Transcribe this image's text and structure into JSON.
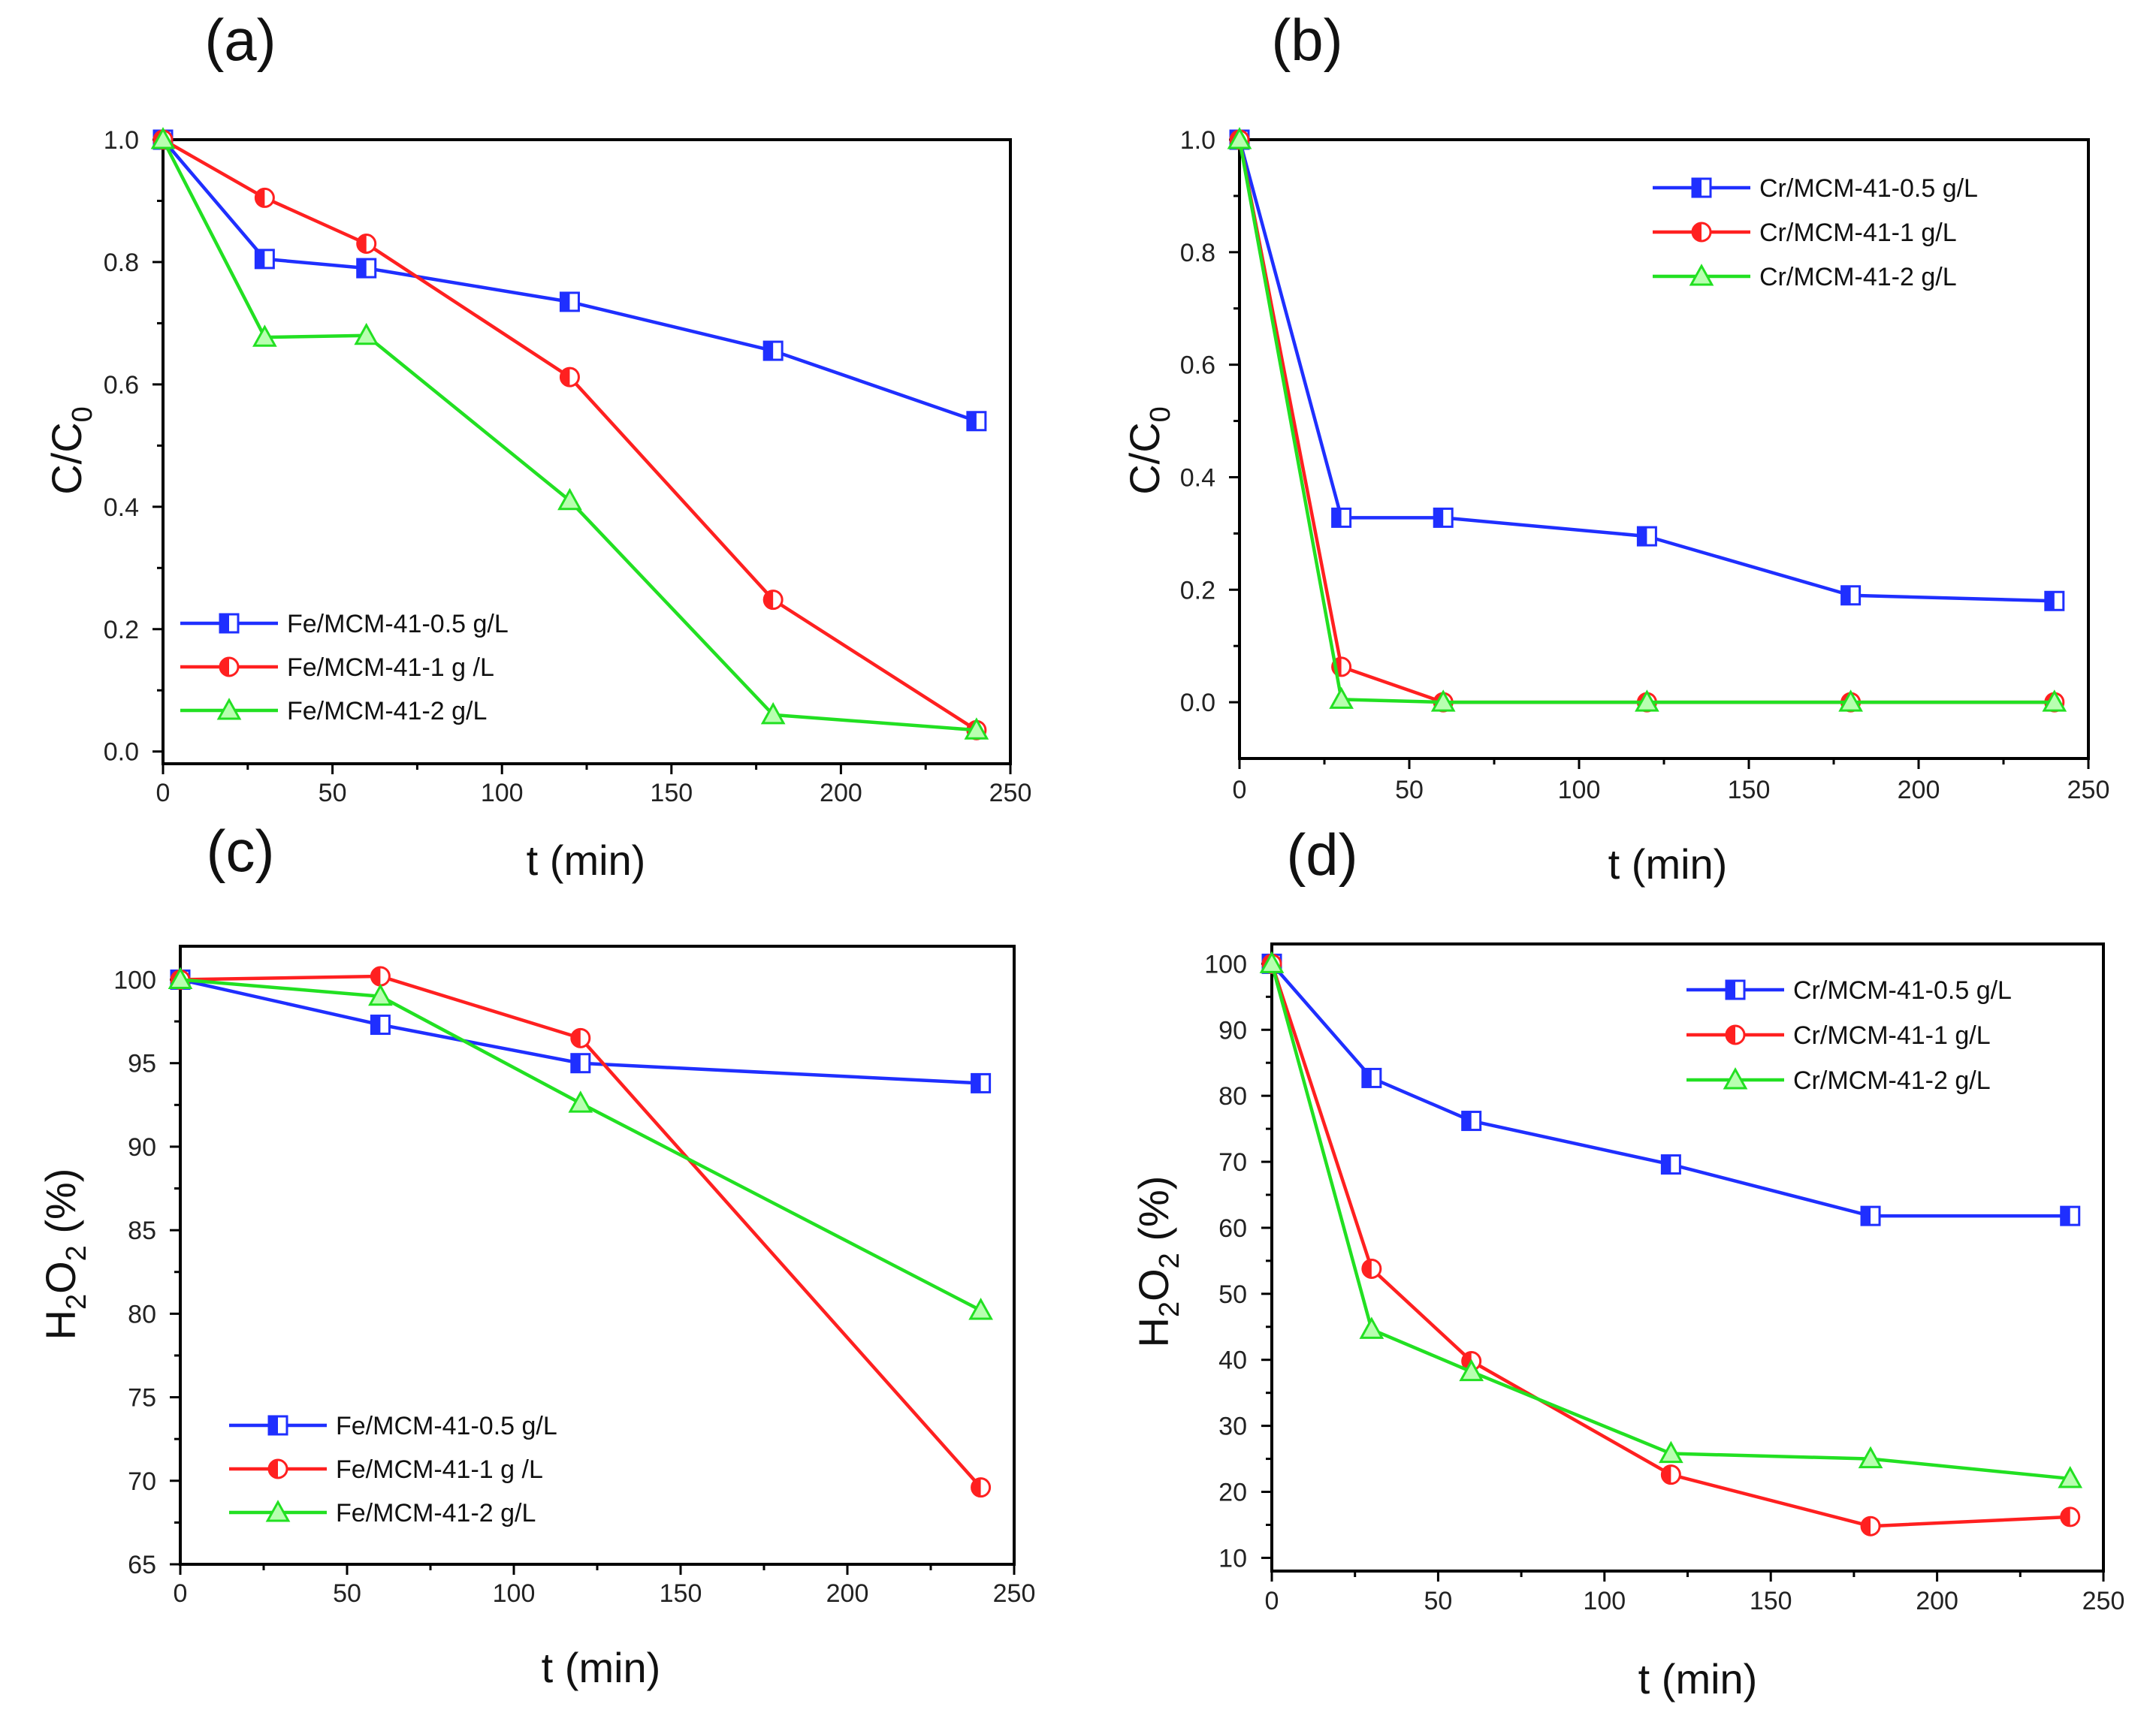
{
  "colors": {
    "blue": "#1f2fff",
    "red": "#ff2020",
    "green": "#22e022"
  },
  "chart_data": [
    {
      "type": "line",
      "panel_label": "(a)",
      "xlabel": "t (min)",
      "ylabel": {
        "main": "C/C",
        "sub": "0"
      },
      "xlim": [
        0,
        250
      ],
      "ylim": [
        -0.02,
        1.0
      ],
      "xticks": [
        "0",
        "50",
        "100",
        "150",
        "200",
        "250"
      ],
      "yticks": [
        "0.0",
        "0.2",
        "0.4",
        "0.6",
        "0.8",
        "1.0"
      ],
      "xtick_values": [
        0,
        50,
        100,
        150,
        200,
        250
      ],
      "ytick_values": [
        0.0,
        0.2,
        0.4,
        0.6,
        0.8,
        1.0
      ],
      "legend_position": "bottom-left",
      "series": [
        {
          "name": "Fe/MCM-41-0.5 g/L",
          "color": "blue",
          "marker": "square-half",
          "x": [
            0,
            30,
            60,
            120,
            180,
            240
          ],
          "y": [
            1.0,
            0.805,
            0.79,
            0.735,
            0.655,
            0.54
          ]
        },
        {
          "name": "Fe/MCM-41-1 g /L",
          "color": "red",
          "marker": "circle-half",
          "x": [
            0,
            30,
            60,
            120,
            180,
            240
          ],
          "y": [
            1.0,
            0.905,
            0.83,
            0.612,
            0.248,
            0.035
          ]
        },
        {
          "name": "Fe/MCM-41-2 g/L",
          "color": "green",
          "marker": "triangle",
          "x": [
            0,
            30,
            60,
            120,
            180,
            240
          ],
          "y": [
            1.0,
            0.677,
            0.68,
            0.41,
            0.06,
            0.035
          ]
        }
      ]
    },
    {
      "type": "line",
      "panel_label": "(b)",
      "xlabel": "t (min)",
      "ylabel": {
        "main": "C/C",
        "sub": "0"
      },
      "xlim": [
        0,
        250
      ],
      "ylim": [
        -0.1,
        1.0
      ],
      "xticks": [
        "0",
        "50",
        "100",
        "150",
        "200",
        "250"
      ],
      "yticks": [
        "0.0",
        "0.2",
        "0.4",
        "0.6",
        "0.8",
        "1.0"
      ],
      "xtick_values": [
        0,
        50,
        100,
        150,
        200,
        250
      ],
      "ytick_values": [
        0.0,
        0.2,
        0.4,
        0.6,
        0.8,
        1.0
      ],
      "legend_position": "top-right",
      "series": [
        {
          "name": "Cr/MCM-41-0.5 g/L",
          "color": "blue",
          "marker": "square-half",
          "x": [
            0,
            30,
            60,
            120,
            180,
            240
          ],
          "y": [
            1.0,
            0.328,
            0.328,
            0.295,
            0.19,
            0.18
          ]
        },
        {
          "name": "Cr/MCM-41-1 g/L",
          "color": "red",
          "marker": "circle-half",
          "x": [
            0,
            30,
            60,
            120,
            180,
            240
          ],
          "y": [
            1.0,
            0.063,
            0.0,
            0.0,
            0.0,
            0.0
          ]
        },
        {
          "name": "Cr/MCM-41-2 g/L",
          "color": "green",
          "marker": "triangle",
          "x": [
            0,
            30,
            60,
            120,
            180,
            240
          ],
          "y": [
            1.0,
            0.005,
            0.0,
            0.0,
            0.0,
            0.0
          ]
        }
      ]
    },
    {
      "type": "line",
      "panel_label": "(c)",
      "xlabel": "t (min)",
      "ylabel": {
        "main": "H",
        "sub1": "2",
        "mid": "O",
        "sub2": "2",
        "tail": " (%)"
      },
      "xlim": [
        0,
        250
      ],
      "ylim": [
        65,
        102
      ],
      "xticks": [
        "0",
        "50",
        "100",
        "150",
        "200",
        "250"
      ],
      "yticks": [
        "65",
        "70",
        "75",
        "80",
        "85",
        "90",
        "95",
        "100"
      ],
      "xtick_values": [
        0,
        50,
        100,
        150,
        200,
        250
      ],
      "ytick_values": [
        65,
        70,
        75,
        80,
        85,
        90,
        95,
        100
      ],
      "legend_position": "bottom-left",
      "series": [
        {
          "name": "Fe/MCM-41-0.5 g/L",
          "color": "blue",
          "marker": "square-half",
          "x": [
            0,
            60,
            120,
            240
          ],
          "y": [
            100,
            97.3,
            95.0,
            93.8
          ]
        },
        {
          "name": "Fe/MCM-41-1 g /L",
          "color": "red",
          "marker": "circle-half",
          "x": [
            0,
            60,
            120,
            240
          ],
          "y": [
            100,
            100.2,
            96.5,
            69.6
          ]
        },
        {
          "name": "Fe/MCM-41-2 g/L",
          "color": "green",
          "marker": "triangle",
          "x": [
            0,
            60,
            120,
            240
          ],
          "y": [
            100,
            99.0,
            92.6,
            80.2
          ]
        }
      ]
    },
    {
      "type": "line",
      "panel_label": "(d)",
      "xlabel": "t (min)",
      "ylabel": {
        "main": "H",
        "sub1": "2",
        "mid": "O",
        "sub2": "2",
        "tail": " (%)"
      },
      "xlim": [
        0,
        250
      ],
      "ylim": [
        8,
        103
      ],
      "xticks": [
        "0",
        "50",
        "100",
        "150",
        "200",
        "250"
      ],
      "yticks": [
        "10",
        "20",
        "30",
        "40",
        "50",
        "60",
        "70",
        "80",
        "90",
        "100"
      ],
      "xtick_values": [
        0,
        50,
        100,
        150,
        200,
        250
      ],
      "ytick_values": [
        10,
        20,
        30,
        40,
        50,
        60,
        70,
        80,
        90,
        100
      ],
      "legend_position": "top-right",
      "series": [
        {
          "name": "Cr/MCM-41-0.5 g/L",
          "color": "blue",
          "marker": "square-half",
          "x": [
            0,
            30,
            60,
            120,
            180,
            240
          ],
          "y": [
            100,
            82.7,
            76.2,
            69.6,
            61.8,
            61.8
          ]
        },
        {
          "name": "Cr/MCM-41-1 g/L",
          "color": "red",
          "marker": "circle-half",
          "x": [
            0,
            30,
            60,
            120,
            180,
            240
          ],
          "y": [
            100,
            53.8,
            39.8,
            22.6,
            14.8,
            16.2
          ]
        },
        {
          "name": "Cr/MCM-41-2 g/L",
          "color": "green",
          "marker": "triangle",
          "x": [
            0,
            30,
            60,
            120,
            180,
            240
          ],
          "y": [
            100,
            44.6,
            38.2,
            25.8,
            25.0,
            22.0
          ]
        }
      ]
    }
  ]
}
